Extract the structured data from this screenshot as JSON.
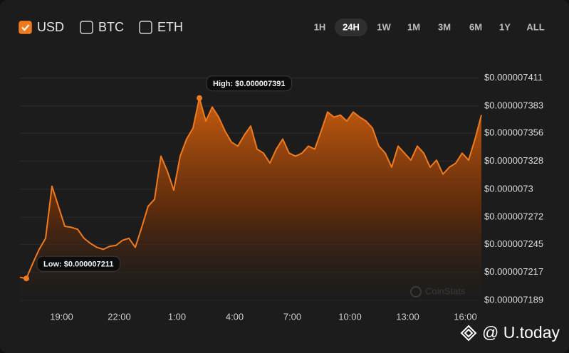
{
  "controls": {
    "currencies": [
      {
        "label": "USD",
        "checked": true
      },
      {
        "label": "BTC",
        "checked": false
      },
      {
        "label": "ETH",
        "checked": false
      }
    ],
    "timeframes": [
      {
        "label": "1H",
        "active": false
      },
      {
        "label": "24H",
        "active": true
      },
      {
        "label": "1W",
        "active": false
      },
      {
        "label": "1M",
        "active": false
      },
      {
        "label": "3M",
        "active": false
      },
      {
        "label": "6M",
        "active": false
      },
      {
        "label": "1Y",
        "active": false
      },
      {
        "label": "ALL",
        "active": false
      }
    ]
  },
  "watermark": "CoinStats",
  "brand": "@ U.today",
  "chart_data": {
    "type": "area",
    "x": [
      "16:50",
      "17:10",
      "17:30",
      "17:50",
      "18:10",
      "18:30",
      "18:50",
      "19:10",
      "19:30",
      "19:50",
      "20:10",
      "20:30",
      "20:50",
      "21:10",
      "21:30",
      "21:50",
      "22:10",
      "22:30",
      "22:50",
      "23:10",
      "23:30",
      "23:50",
      "0:10",
      "0:30",
      "0:50",
      "1:10",
      "1:30",
      "1:50",
      "2:10",
      "2:30",
      "2:50",
      "3:10",
      "3:30",
      "3:50",
      "4:10",
      "4:30",
      "4:50",
      "5:10",
      "5:30",
      "5:50",
      "6:10",
      "6:30",
      "6:50",
      "7:10",
      "7:30",
      "7:50",
      "8:10",
      "8:30",
      "8:50",
      "9:10",
      "9:30",
      "9:50",
      "10:10",
      "10:30",
      "10:50",
      "11:10",
      "11:30",
      "11:50",
      "12:10",
      "12:30",
      "12:50",
      "13:10",
      "13:30",
      "13:50",
      "14:10",
      "14:30",
      "14:50",
      "15:10",
      "15:30",
      "15:50",
      "16:10",
      "16:30",
      "16:50"
    ],
    "series": [
      {
        "name": "USD",
        "color": "#f07a1e",
        "values": [
          7.212e-06,
          7.211e-06,
          7.226e-06,
          7.24e-06,
          7.251e-06,
          7.303e-06,
          7.283e-06,
          7.263e-06,
          7.262e-06,
          7.26e-06,
          7.251e-06,
          7.246e-06,
          7.242e-06,
          7.24e-06,
          7.243e-06,
          7.244e-06,
          7.249e-06,
          7.251e-06,
          7.242e-06,
          7.262e-06,
          7.283e-06,
          7.29e-06,
          7.333e-06,
          7.318e-06,
          7.299e-06,
          7.333e-06,
          7.35e-06,
          7.361e-06,
          7.391e-06,
          7.368e-06,
          7.382e-06,
          7.372e-06,
          7.358e-06,
          7.347e-06,
          7.343e-06,
          7.354e-06,
          7.363e-06,
          7.34e-06,
          7.336e-06,
          7.326e-06,
          7.34e-06,
          7.35e-06,
          7.336e-06,
          7.333e-06,
          7.336e-06,
          7.343e-06,
          7.34e-06,
          7.358e-06,
          7.377e-06,
          7.372e-06,
          7.374e-06,
          7.368e-06,
          7.377e-06,
          7.372e-06,
          7.368e-06,
          7.361e-06,
          7.343e-06,
          7.336e-06,
          7.322e-06,
          7.343e-06,
          7.336e-06,
          7.329e-06,
          7.343e-06,
          7.336e-06,
          7.322e-06,
          7.329e-06,
          7.315e-06,
          7.322e-06,
          7.326e-06,
          7.336e-06,
          7.329e-06,
          7.35e-06,
          7.374e-06
        ]
      }
    ],
    "xticks": [
      "19:00",
      "22:00",
      "1:00",
      "4:00",
      "7:00",
      "10:00",
      "13:00",
      "16:00"
    ],
    "ylim": [
      7.187e-06,
      7.432e-06
    ],
    "yticks": [
      {
        "value": 7.411e-06,
        "label": "$0.000007411"
      },
      {
        "value": 7.383e-06,
        "label": "$0.000007383"
      },
      {
        "value": 7.356e-06,
        "label": "$0.000007356"
      },
      {
        "value": 7.328e-06,
        "label": "$0.000007328"
      },
      {
        "value": 7.3e-06,
        "label": "$0.0000073"
      },
      {
        "value": 7.272e-06,
        "label": "$0.000007272"
      },
      {
        "value": 7.245e-06,
        "label": "$0.000007245"
      },
      {
        "value": 7.217e-06,
        "label": "$0.000007217"
      },
      {
        "value": 7.189e-06,
        "label": "$0.000007189"
      }
    ],
    "grid": true,
    "annotations": {
      "high": "High: $0.000007391",
      "low": "Low: $0.000007211"
    }
  }
}
